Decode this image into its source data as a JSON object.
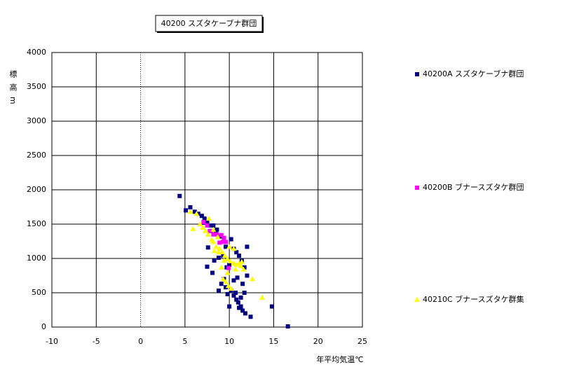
{
  "chart_data": {
    "type": "scatter",
    "title": "40200 スズタケーブナ群団",
    "x_label": "年平均気温℃",
    "y_label": "標高m",
    "xlim": [
      -10,
      25
    ],
    "xticks": [
      -10,
      -5,
      0,
      5,
      10,
      15,
      20,
      25
    ],
    "ylim": [
      0,
      4000
    ],
    "yticks": [
      0,
      500,
      1000,
      1500,
      2000,
      2500,
      3000,
      3500,
      4000
    ],
    "grid": true,
    "legend": "right",
    "series": [
      {
        "name": "40200A スズタケーブナ群団",
        "color": "#000080",
        "marker": "square",
        "x": [
          4.4,
          5.1,
          5.6,
          6.1,
          6.5,
          6.9,
          7.2,
          7.5,
          7.8,
          8.2,
          8.6,
          7.6,
          7.5,
          8.1,
          8.3,
          9.0,
          9.3,
          9.6,
          10.2,
          10.5,
          10.8,
          11.1,
          11.4,
          11.7,
          12.0,
          12.0,
          14.8,
          16.6,
          8.8,
          9.1,
          9.4,
          9.6,
          9.8,
          10.0,
          10.2,
          10.5,
          10.8,
          11.0,
          11.3,
          11.5,
          11.8,
          12.4,
          10.7,
          11.3,
          11.1,
          9.7,
          9.3,
          8.8,
          10.0,
          10.9,
          11.5,
          10.5,
          11.7,
          7.1,
          7.9,
          8.5
        ],
        "values": [
          1910,
          1700,
          1745,
          1680,
          1650,
          1620,
          1580,
          1520,
          1480,
          1480,
          1420,
          1160,
          880,
          790,
          970,
          1320,
          1240,
          1170,
          1280,
          1140,
          1090,
          1040,
          970,
          870,
          1170,
          750,
          300,
          10,
          530,
          630,
          700,
          580,
          480,
          300,
          530,
          460,
          400,
          360,
          300,
          240,
          200,
          150,
          500,
          430,
          280,
          870,
          1040,
          1010,
          910,
          720,
          630,
          680,
          500,
          1520,
          1400,
          1380
        ]
      },
      {
        "name": "40200B ブナースズタケ群団",
        "color": "#ff00ff",
        "marker": "square",
        "x": [
          7.1,
          7.5,
          7.8,
          8.2,
          8.6,
          8.9,
          9.3,
          9.1,
          9.6,
          9.9,
          9.4
        ],
        "values": [
          1530,
          1480,
          1400,
          1350,
          1350,
          1230,
          1240,
          1340,
          1240,
          860,
          1300
        ]
      },
      {
        "name": "40210C ブナースズタケ群集",
        "color": "#ffff00",
        "marker": "triangle",
        "x": [
          5.6,
          5.9,
          6.3,
          6.7,
          7.0,
          7.3,
          7.6,
          8.0,
          8.2,
          8.5,
          8.9,
          9.2,
          9.5,
          9.8,
          10.1,
          10.5,
          10.8,
          11.1,
          11.4,
          9.4,
          9.1,
          9.8,
          9.3,
          9.6,
          9.9,
          10.2,
          12.6,
          13.7,
          10.5,
          10.0,
          8.7,
          8.2,
          7.7,
          10.7,
          11.3,
          11.6,
          8.8,
          8.3
        ],
        "values": [
          1680,
          1430,
          1650,
          1500,
          1450,
          1400,
          1350,
          1270,
          1240,
          1170,
          1140,
          1090,
          1040,
          990,
          960,
          930,
          910,
          930,
          950,
          970,
          870,
          790,
          700,
          660,
          600,
          560,
          700,
          430,
          1140,
          1170,
          1310,
          1420,
          1580,
          840,
          890,
          840,
          1090,
          1110
        ]
      }
    ]
  }
}
